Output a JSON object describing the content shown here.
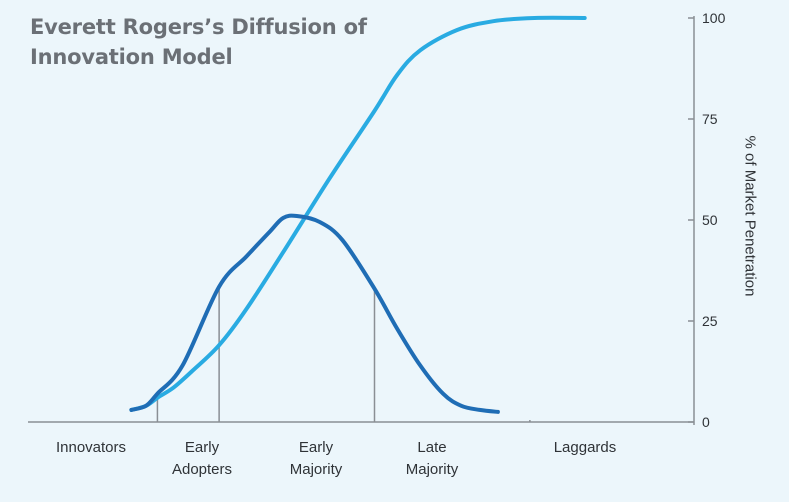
{
  "title": [
    "Everett Rogers’s Diffusion of",
    "Innovation Model"
  ],
  "colors": {
    "s_curve": "#29abe2",
    "bell_curve": "#1f6db5",
    "divider": "#8a8f94",
    "axis": "#8a8f94",
    "background": "#ecf6fb"
  },
  "chart_data": {
    "type": "line",
    "title": "Everett Rogers’s Diffusion of Innovation Model",
    "ylabel": "% of Market Penetration",
    "yaxis_side": "right",
    "ylim": [
      0,
      100
    ],
    "yticks": [
      "0",
      "25",
      "50",
      "75",
      "100"
    ],
    "categories": [
      {
        "lines": [
          "Innovators"
        ]
      },
      {
        "lines": [
          "Early",
          "Adopters"
        ]
      },
      {
        "lines": [
          "Early",
          "Majority"
        ]
      },
      {
        "lines": [
          "Late",
          "Majority"
        ]
      },
      {
        "lines": [
          "Laggards"
        ]
      }
    ],
    "x_range": [
      0,
      100
    ],
    "dividers_x": [
      2.5,
      16,
      50,
      84
    ],
    "series": [
      {
        "kind": "s-curve",
        "points": [
          [
            -3.2,
            3
          ],
          [
            0,
            4
          ],
          [
            2.5,
            6
          ],
          [
            6,
            8.5
          ],
          [
            10,
            12.5
          ],
          [
            16,
            19
          ],
          [
            22,
            28
          ],
          [
            30,
            42
          ],
          [
            40,
            60
          ],
          [
            50,
            77
          ],
          [
            55,
            86
          ],
          [
            60,
            92
          ],
          [
            68,
            97
          ],
          [
            76,
            99.2
          ],
          [
            85,
            100
          ],
          [
            96,
            100
          ]
        ]
      },
      {
        "kind": "bell-curve",
        "points": [
          [
            -3.2,
            3
          ],
          [
            0,
            4
          ],
          [
            2.5,
            7
          ],
          [
            8,
            14
          ],
          [
            16,
            33.5
          ],
          [
            22,
            41
          ],
          [
            27,
            47
          ],
          [
            30,
            50.5
          ],
          [
            33,
            51
          ],
          [
            38,
            49.5
          ],
          [
            43,
            45
          ],
          [
            50,
            33
          ],
          [
            55,
            23
          ],
          [
            60,
            14
          ],
          [
            65,
            7
          ],
          [
            69,
            4
          ],
          [
            73,
            3
          ],
          [
            77,
            2.5
          ]
        ]
      }
    ]
  }
}
